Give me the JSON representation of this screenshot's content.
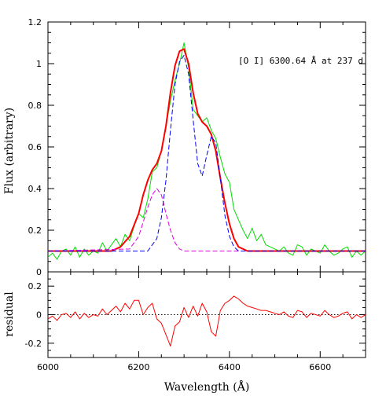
{
  "chart_data": [
    {
      "type": "line",
      "panel": "main",
      "ylabel": "Flux (arbitrary)",
      "xlim": [
        6000,
        6700
      ],
      "ylim": [
        0,
        1.2
      ],
      "x_ticks": [
        6000,
        6200,
        6400,
        6600
      ],
      "y_ticks": [
        0,
        0.2,
        0.4,
        0.6,
        0.8,
        1,
        1.2
      ],
      "y_tick_labels": [
        "0",
        "0.2",
        "0.4",
        "0.6",
        "0.8",
        "1",
        "1.2"
      ],
      "annotation": "[O I] 6300.64 Å at 237 d",
      "grid": false,
      "series": [
        {
          "style": "solid",
          "color": "#00dd00",
          "x": [
            6000,
            6010,
            6020,
            6030,
            6040,
            6050,
            6060,
            6070,
            6080,
            6090,
            6100,
            6110,
            6120,
            6130,
            6140,
            6150,
            6160,
            6170,
            6180,
            6190,
            6200,
            6210,
            6220,
            6230,
            6240,
            6250,
            6260,
            6270,
            6280,
            6290,
            6300,
            6310,
            6320,
            6330,
            6340,
            6350,
            6360,
            6370,
            6380,
            6390,
            6400,
            6410,
            6420,
            6430,
            6440,
            6450,
            6460,
            6470,
            6480,
            6490,
            6500,
            6510,
            6520,
            6530,
            6540,
            6550,
            6560,
            6570,
            6580,
            6590,
            6600,
            6610,
            6620,
            6630,
            6640,
            6650,
            6660,
            6670,
            6680,
            6690,
            6700
          ],
          "values": [
            0.07,
            0.09,
            0.06,
            0.1,
            0.11,
            0.08,
            0.12,
            0.07,
            0.11,
            0.08,
            0.1,
            0.09,
            0.14,
            0.1,
            0.13,
            0.16,
            0.12,
            0.18,
            0.15,
            0.22,
            0.28,
            0.26,
            0.35,
            0.48,
            0.5,
            0.58,
            0.7,
            0.82,
            0.92,
            1.0,
            1.1,
            0.98,
            0.78,
            0.75,
            0.72,
            0.74,
            0.68,
            0.64,
            0.55,
            0.47,
            0.43,
            0.3,
            0.25,
            0.2,
            0.16,
            0.21,
            0.15,
            0.18,
            0.13,
            0.12,
            0.11,
            0.1,
            0.12,
            0.09,
            0.08,
            0.13,
            0.12,
            0.08,
            0.11,
            0.1,
            0.09,
            0.13,
            0.1,
            0.08,
            0.09,
            0.11,
            0.12,
            0.07,
            0.1,
            0.08,
            0.1
          ]
        },
        {
          "style": "solid",
          "color": "#ff0000",
          "x": [
            6000,
            6140,
            6160,
            6180,
            6200,
            6210,
            6220,
            6230,
            6240,
            6250,
            6260,
            6270,
            6280,
            6290,
            6300,
            6310,
            6320,
            6330,
            6340,
            6350,
            6360,
            6370,
            6380,
            6390,
            6400,
            6410,
            6420,
            6430,
            6440,
            6700
          ],
          "values": [
            0.1,
            0.1,
            0.12,
            0.17,
            0.28,
            0.37,
            0.44,
            0.49,
            0.52,
            0.58,
            0.7,
            0.86,
            0.99,
            1.06,
            1.07,
            1.0,
            0.86,
            0.76,
            0.72,
            0.7,
            0.66,
            0.58,
            0.45,
            0.33,
            0.23,
            0.16,
            0.12,
            0.11,
            0.1,
            0.1
          ]
        },
        {
          "style": "dashed",
          "color": "#dd00dd",
          "x": [
            6000,
            6180,
            6200,
            6210,
            6220,
            6230,
            6240,
            6250,
            6260,
            6270,
            6280,
            6290,
            6300,
            6700
          ],
          "values": [
            0.1,
            0.11,
            0.17,
            0.24,
            0.31,
            0.37,
            0.4,
            0.37,
            0.28,
            0.2,
            0.14,
            0.11,
            0.1,
            0.1
          ]
        },
        {
          "style": "dashed",
          "color": "#0000ff",
          "x": [
            6000,
            6220,
            6240,
            6250,
            6260,
            6270,
            6280,
            6290,
            6300,
            6310,
            6320,
            6330,
            6340,
            6350,
            6360,
            6370,
            6380,
            6390,
            6400,
            6410,
            6420,
            6440,
            6700
          ],
          "values": [
            0.1,
            0.1,
            0.16,
            0.26,
            0.44,
            0.68,
            0.9,
            1.01,
            1.04,
            0.95,
            0.73,
            0.52,
            0.46,
            0.56,
            0.65,
            0.62,
            0.45,
            0.27,
            0.17,
            0.12,
            0.1,
            0.1,
            0.1
          ]
        }
      ]
    },
    {
      "type": "line",
      "panel": "residual",
      "xlabel": "Wavelength (Å)",
      "ylabel": "residual",
      "xlim": [
        6000,
        6700
      ],
      "ylim": [
        -0.3,
        0.3
      ],
      "x_ticks": [
        6000,
        6200,
        6400,
        6600
      ],
      "y_ticks": [
        -0.2,
        0,
        0.2
      ],
      "y_tick_labels": [
        "-0.2",
        "0",
        "0.2"
      ],
      "zero_line": "dotted",
      "series": [
        {
          "style": "solid",
          "color": "#ff0000",
          "x": [
            6000,
            6010,
            6020,
            6030,
            6040,
            6050,
            6060,
            6070,
            6080,
            6090,
            6100,
            6110,
            6120,
            6130,
            6140,
            6150,
            6160,
            6170,
            6180,
            6190,
            6200,
            6210,
            6220,
            6230,
            6240,
            6250,
            6260,
            6270,
            6280,
            6290,
            6300,
            6310,
            6320,
            6330,
            6340,
            6350,
            6360,
            6370,
            6380,
            6390,
            6400,
            6410,
            6420,
            6430,
            6440,
            6450,
            6460,
            6470,
            6480,
            6490,
            6500,
            6510,
            6520,
            6530,
            6540,
            6550,
            6560,
            6570,
            6580,
            6590,
            6600,
            6610,
            6620,
            6630,
            6640,
            6650,
            6660,
            6670,
            6680,
            6690,
            6700
          ],
          "values": [
            -0.03,
            -0.01,
            -0.04,
            0.0,
            0.01,
            -0.02,
            0.02,
            -0.03,
            0.01,
            -0.02,
            0.0,
            -0.01,
            0.04,
            0.0,
            0.03,
            0.06,
            0.02,
            0.08,
            0.04,
            0.1,
            0.1,
            0.0,
            0.05,
            0.08,
            -0.03,
            -0.06,
            -0.14,
            -0.22,
            -0.08,
            -0.05,
            0.05,
            -0.02,
            0.06,
            -0.01,
            0.08,
            0.02,
            -0.12,
            -0.15,
            0.03,
            0.08,
            0.1,
            0.13,
            0.11,
            0.08,
            0.06,
            0.05,
            0.04,
            0.03,
            0.03,
            0.02,
            0.01,
            0.0,
            0.02,
            -0.01,
            -0.02,
            0.03,
            0.02,
            -0.02,
            0.01,
            0.0,
            -0.01,
            0.03,
            0.0,
            -0.02,
            -0.01,
            0.01,
            0.02,
            -0.03,
            0.0,
            -0.02,
            0.0
          ]
        }
      ]
    }
  ]
}
